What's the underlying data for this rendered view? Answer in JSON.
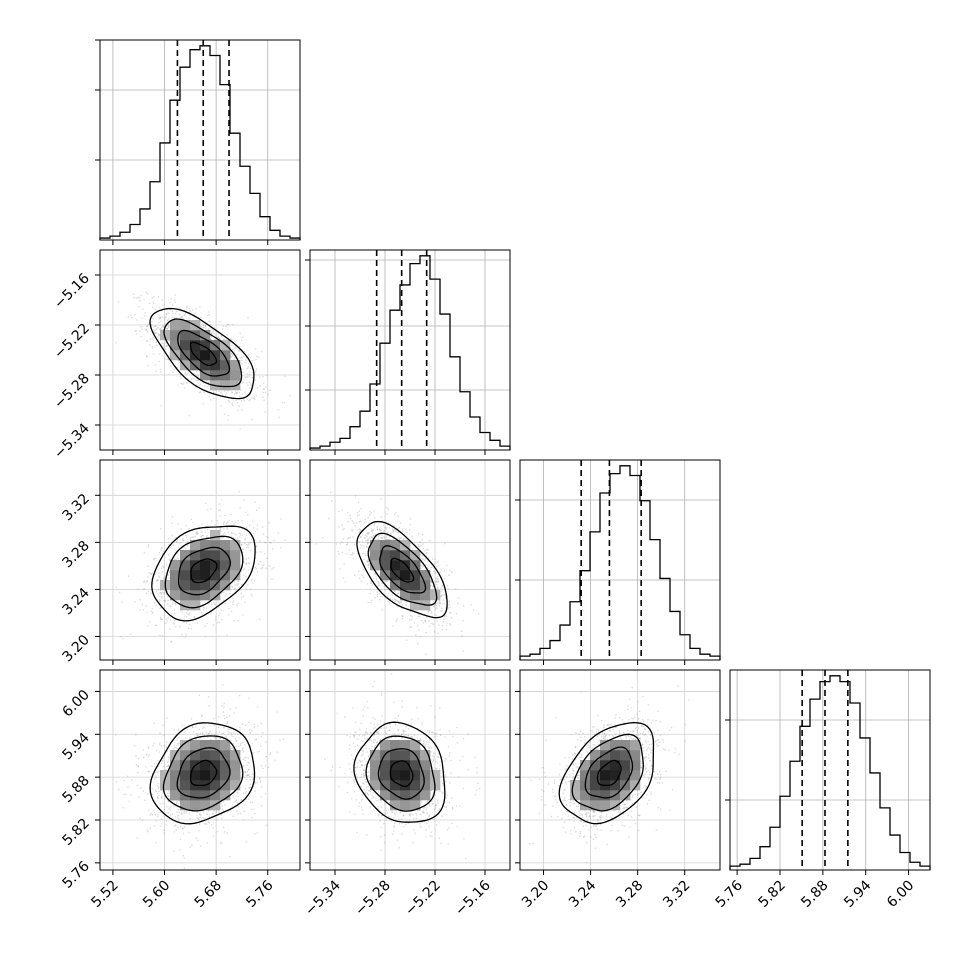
{
  "chart_data": {
    "type": "corner",
    "grid": true,
    "parameters": [
      {
        "ticks": [
          "5.52",
          "5.60",
          "5.68",
          "5.76"
        ],
        "tick_values": [
          5.52,
          5.6,
          5.68,
          5.76
        ],
        "range": [
          5.5,
          5.81
        ],
        "quantiles": [
          5.62,
          5.66,
          5.7
        ],
        "histogram": [
          0.01,
          0.02,
          0.04,
          0.08,
          0.16,
          0.3,
          0.5,
          0.72,
          0.89,
          0.98,
          1.0,
          0.95,
          0.8,
          0.55,
          0.38,
          0.24,
          0.12,
          0.05,
          0.02,
          0.01
        ],
        "hist_yticks": [
          0.4,
          0.75,
          1.0
        ]
      },
      {
        "ticks": [
          "−5.34",
          "−5.28",
          "−5.22",
          "−5.16"
        ],
        "tick_values": [
          -5.34,
          -5.28,
          -5.22,
          -5.16
        ],
        "range": [
          -5.37,
          -5.13
        ],
        "quantiles": [
          -5.29,
          -5.26,
          -5.23
        ],
        "histogram": [
          0.01,
          0.02,
          0.04,
          0.06,
          0.12,
          0.2,
          0.34,
          0.55,
          0.72,
          0.85,
          0.96,
          1.0,
          0.88,
          0.7,
          0.48,
          0.3,
          0.17,
          0.09,
          0.05,
          0.02
        ],
        "hist_yticks": [
          0.3,
          0.62,
          0.95
        ]
      },
      {
        "ticks": [
          "3.20",
          "3.24",
          "3.28",
          "3.32"
        ],
        "tick_values": [
          3.2,
          3.24,
          3.28,
          3.32
        ],
        "range": [
          3.18,
          3.35
        ],
        "quantiles": [
          3.232,
          3.256,
          3.283
        ],
        "histogram": [
          0.02,
          0.03,
          0.06,
          0.1,
          0.18,
          0.3,
          0.46,
          0.66,
          0.86,
          0.96,
          1.0,
          0.95,
          0.82,
          0.62,
          0.42,
          0.25,
          0.13,
          0.06,
          0.03,
          0.02
        ],
        "hist_yticks": [
          0.4,
          0.8
        ]
      },
      {
        "ticks": [
          "5.76",
          "5.82",
          "5.88",
          "5.94",
          "6.00"
        ],
        "tick_values": [
          5.76,
          5.82,
          5.88,
          5.94,
          6.0
        ],
        "range": [
          5.75,
          6.03
        ],
        "quantiles": [
          5.851,
          5.883,
          5.915
        ],
        "histogram": [
          0.02,
          0.03,
          0.06,
          0.12,
          0.22,
          0.38,
          0.56,
          0.74,
          0.88,
          0.97,
          1.0,
          0.97,
          0.86,
          0.68,
          0.5,
          0.32,
          0.18,
          0.09,
          0.04,
          0.02
        ],
        "hist_yticks": [
          0.35,
          0.75
        ]
      }
    ],
    "joint": [
      {
        "x": 0,
        "y": 1,
        "mean": [
          5.66,
          -5.255
        ],
        "sd": [
          0.04,
          0.027
        ],
        "rho": -0.65
      },
      {
        "x": 0,
        "y": 2,
        "mean": [
          5.66,
          3.256
        ],
        "sd": [
          0.04,
          0.02
        ],
        "rho": 0.35
      },
      {
        "x": 1,
        "y": 2,
        "mean": [
          -5.26,
          3.256
        ],
        "sd": [
          0.027,
          0.02
        ],
        "rho": -0.62
      },
      {
        "x": 0,
        "y": 3,
        "mean": [
          5.66,
          5.885
        ],
        "sd": [
          0.04,
          0.035
        ],
        "rho": 0.2
      },
      {
        "x": 1,
        "y": 3,
        "mean": [
          -5.26,
          5.885
        ],
        "sd": [
          0.027,
          0.035
        ],
        "rho": -0.15
      },
      {
        "x": 2,
        "y": 3,
        "mean": [
          3.256,
          5.885
        ],
        "sd": [
          0.02,
          0.035
        ],
        "rho": 0.38
      }
    ]
  }
}
